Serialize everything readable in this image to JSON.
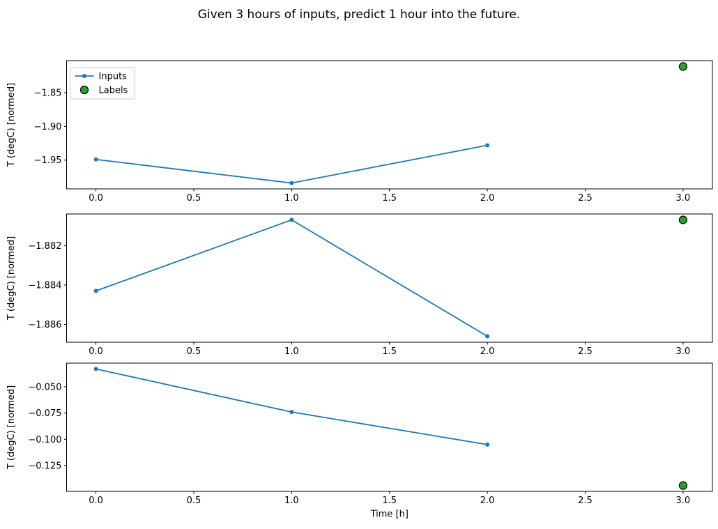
{
  "figure": {
    "title": "Given 3 hours of inputs, predict 1 hour into the future.",
    "background": "#ffffff"
  },
  "colors": {
    "inputs_line": "#1f77b4",
    "labels_fill": "#2ca02c",
    "labels_edge": "#000000",
    "axis": "#000000",
    "legend_border": "#cccccc"
  },
  "chart_data": [
    {
      "type": "line",
      "ylabel": "T (degC) [normed]",
      "xlabel": "",
      "x": [
        0,
        1,
        2
      ],
      "series": [
        {
          "name": "Inputs",
          "values": [
            -1.949,
            -1.984,
            -1.928
          ]
        }
      ],
      "labels_point": {
        "name": "Labels",
        "x": 3,
        "y": -1.811
      },
      "xticks": [
        0.0,
        0.5,
        1.0,
        1.5,
        2.0,
        2.5,
        3.0
      ],
      "xtick_labels": [
        "0.0",
        "0.5",
        "1.0",
        "1.5",
        "2.0",
        "2.5",
        "3.0"
      ],
      "yticks": [
        -1.85,
        -1.9,
        -1.95
      ],
      "ytick_labels": [
        "−1.85",
        "−1.90",
        "−1.95"
      ],
      "xlim": [
        -0.15,
        3.15
      ],
      "ylim": [
        -1.9927,
        -1.8023
      ],
      "legend": true,
      "legend_position": "upper-left",
      "grid": false
    },
    {
      "type": "line",
      "ylabel": "T (degC) [normed]",
      "xlabel": "",
      "x": [
        0,
        1,
        2
      ],
      "series": [
        {
          "name": "Inputs",
          "values": [
            -1.8843,
            -1.8807,
            -1.8866
          ]
        }
      ],
      "labels_point": {
        "name": "Labels",
        "x": 3,
        "y": -1.8807
      },
      "xticks": [
        0.0,
        0.5,
        1.0,
        1.5,
        2.0,
        2.5,
        3.0
      ],
      "xtick_labels": [
        "0.0",
        "0.5",
        "1.0",
        "1.5",
        "2.0",
        "2.5",
        "3.0"
      ],
      "yticks": [
        -1.882,
        -1.884,
        -1.886
      ],
      "ytick_labels": [
        "−1.882",
        "−1.884",
        "−1.886"
      ],
      "xlim": [
        -0.15,
        3.15
      ],
      "ylim": [
        -1.8869,
        -1.8804
      ],
      "legend": false,
      "grid": false
    },
    {
      "type": "line",
      "ylabel": "T (degC) [normed]",
      "xlabel": "Time [h]",
      "x": [
        0,
        1,
        2
      ],
      "series": [
        {
          "name": "Inputs",
          "values": [
            -0.033,
            -0.074,
            -0.105
          ]
        }
      ],
      "labels_point": {
        "name": "Labels",
        "x": 3,
        "y": -0.144
      },
      "xticks": [
        0.0,
        0.5,
        1.0,
        1.5,
        2.0,
        2.5,
        3.0
      ],
      "xtick_labels": [
        "0.0",
        "0.5",
        "1.0",
        "1.5",
        "2.0",
        "2.5",
        "3.0"
      ],
      "yticks": [
        -0.05,
        -0.075,
        -0.1,
        -0.125
      ],
      "ytick_labels": [
        "−0.050",
        "−0.075",
        "−0.100",
        "−0.125"
      ],
      "xlim": [
        -0.15,
        3.15
      ],
      "ylim": [
        -0.14955,
        -0.02745
      ],
      "legend": false,
      "grid": false
    }
  ]
}
